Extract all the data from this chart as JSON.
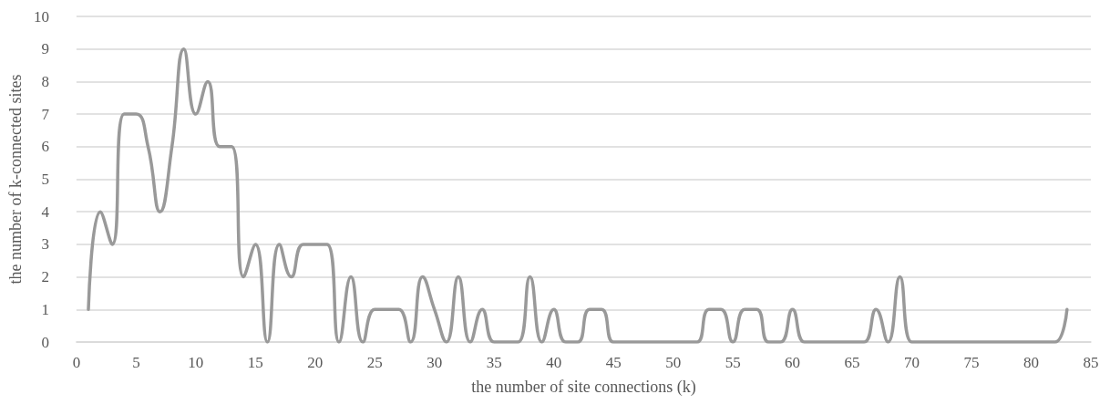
{
  "chart_data": {
    "type": "line",
    "xlabel": "the number of site connections (k)",
    "ylabel": "the number of k-connected sites",
    "x": [
      1,
      2,
      3,
      4,
      5,
      6,
      7,
      8,
      9,
      10,
      11,
      12,
      13,
      14,
      15,
      16,
      17,
      18,
      19,
      20,
      21,
      22,
      23,
      24,
      25,
      26,
      27,
      28,
      29,
      30,
      31,
      32,
      33,
      34,
      35,
      36,
      37,
      38,
      39,
      40,
      41,
      42,
      43,
      44,
      45,
      46,
      47,
      48,
      49,
      50,
      51,
      52,
      53,
      54,
      55,
      56,
      57,
      58,
      59,
      60,
      61,
      62,
      63,
      64,
      65,
      66,
      67,
      68,
      69,
      70,
      71,
      72,
      73,
      74,
      75,
      76,
      77,
      78,
      79,
      80,
      81,
      82,
      83
    ],
    "series": [
      {
        "color": "#999999",
        "values": [
          1,
          4,
          3,
          7,
          7,
          6,
          4,
          6,
          9,
          7,
          8,
          6,
          6,
          2,
          3,
          0,
          3,
          2,
          3,
          3,
          3,
          0,
          2,
          0,
          1,
          1,
          1,
          0,
          2,
          1,
          0,
          2,
          0,
          1,
          0,
          0,
          0,
          2,
          0,
          1,
          0,
          0,
          1,
          1,
          0,
          0,
          0,
          0,
          0,
          0,
          0,
          0,
          1,
          1,
          0,
          1,
          1,
          0,
          0,
          1,
          0,
          0,
          0,
          0,
          0,
          0,
          1,
          0,
          2,
          0,
          0,
          0,
          0,
          0,
          0,
          0,
          0,
          0,
          0,
          0,
          0,
          0,
          1
        ]
      }
    ],
    "xlim": [
      0,
      85
    ],
    "xticks": [
      0,
      5,
      10,
      15,
      20,
      25,
      30,
      35,
      40,
      45,
      50,
      55,
      60,
      65,
      70,
      75,
      80,
      85
    ],
    "ylim": [
      0,
      10
    ],
    "yticks": [
      0,
      1,
      2,
      3,
      4,
      5,
      6,
      7,
      8,
      9,
      10
    ],
    "grid": "y",
    "marker": "none",
    "line_style": "solid"
  }
}
